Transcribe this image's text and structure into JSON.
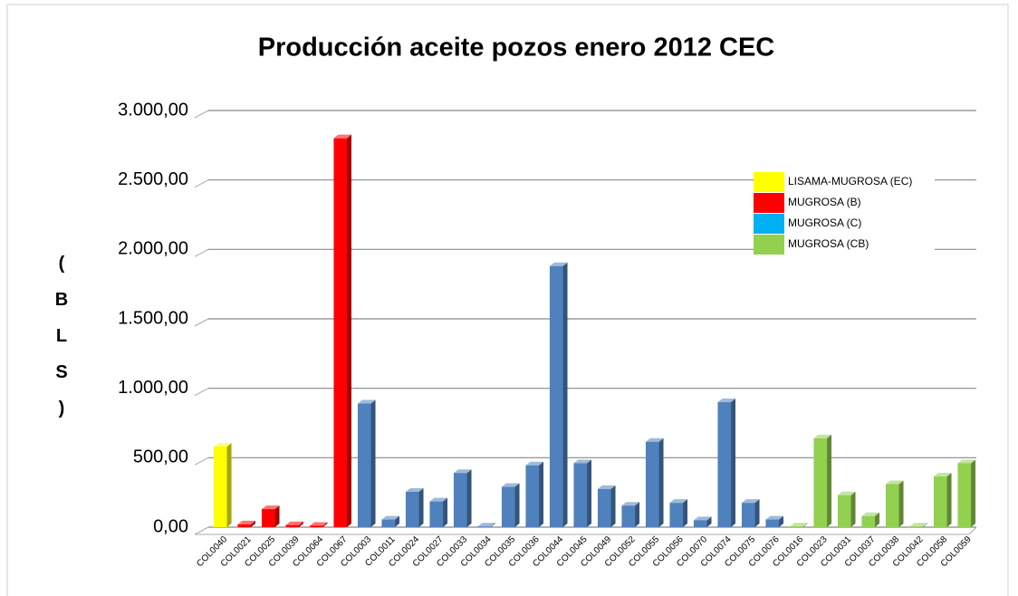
{
  "chart_data": {
    "type": "bar",
    "title": "Producción aceite pozos enero 2012 CEC",
    "y_label": "(BLS)",
    "categories": [
      "COL0040",
      "COL0021",
      "COL0025",
      "COL0039",
      "COL0064",
      "COL0067",
      "COL0003",
      "COL0011",
      "COL0024",
      "COL0027",
      "COL0033",
      "COL0034",
      "COL0035",
      "COL0036",
      "COL0044",
      "COL0045",
      "COL0049",
      "COL0052",
      "COL0055",
      "COL0056",
      "COL0070",
      "COL0074",
      "COL0075",
      "COL0076",
      "COL0016",
      "COL0023",
      "COL0031",
      "COL0037",
      "COL0038",
      "COL0042",
      "COL0058",
      "COL0059"
    ],
    "series": [
      {
        "name": "LISAMA-MUGROSA (EC)",
        "color": "#ffff00",
        "values": [
          580,
          null,
          null,
          null,
          null,
          null,
          null,
          null,
          null,
          null,
          null,
          null,
          null,
          null,
          null,
          null,
          null,
          null,
          null,
          null,
          null,
          null,
          null,
          null,
          null,
          null,
          null,
          null,
          null,
          null,
          null,
          null
        ]
      },
      {
        "name": "MUGROSA (B)",
        "color": "#ff0000",
        "values": [
          null,
          20,
          130,
          15,
          10,
          2800,
          null,
          null,
          null,
          null,
          null,
          null,
          null,
          null,
          null,
          null,
          null,
          null,
          null,
          null,
          null,
          null,
          null,
          null,
          null,
          null,
          null,
          null,
          null,
          null,
          null,
          null
        ]
      },
      {
        "name": "MUGROSA (C)",
        "color": "#4f81bd",
        "values": [
          null,
          null,
          null,
          null,
          null,
          null,
          890,
          55,
          255,
          185,
          390,
          5,
          290,
          445,
          1880,
          460,
          275,
          155,
          615,
          175,
          50,
          900,
          175,
          55,
          null,
          null,
          null,
          null,
          null,
          null,
          null,
          null
        ]
      },
      {
        "name": "MUGROSA (CB)",
        "color": "#92d050",
        "values": [
          null,
          null,
          null,
          null,
          null,
          null,
          null,
          null,
          null,
          null,
          null,
          null,
          null,
          null,
          null,
          null,
          null,
          null,
          null,
          null,
          null,
          null,
          null,
          null,
          5,
          640,
          230,
          80,
          310,
          5,
          365,
          460
        ]
      }
    ],
    "legend_colors": [
      "#ffff00",
      "#ff0000",
      "#00b0f0",
      "#92d050"
    ],
    "ylim": [
      0,
      3000
    ],
    "yticks": [
      {
        "value": 0,
        "label": "0,00"
      },
      {
        "value": 500,
        "label": "500,00"
      },
      {
        "value": 1000,
        "label": "1.000,00"
      },
      {
        "value": 1500,
        "label": "1.500,00"
      },
      {
        "value": 2000,
        "label": "2.000,00"
      },
      {
        "value": 2500,
        "label": "2.500,00"
      },
      {
        "value": 3000,
        "label": "3.000,00"
      }
    ],
    "grid": true,
    "legend": "upper right"
  }
}
